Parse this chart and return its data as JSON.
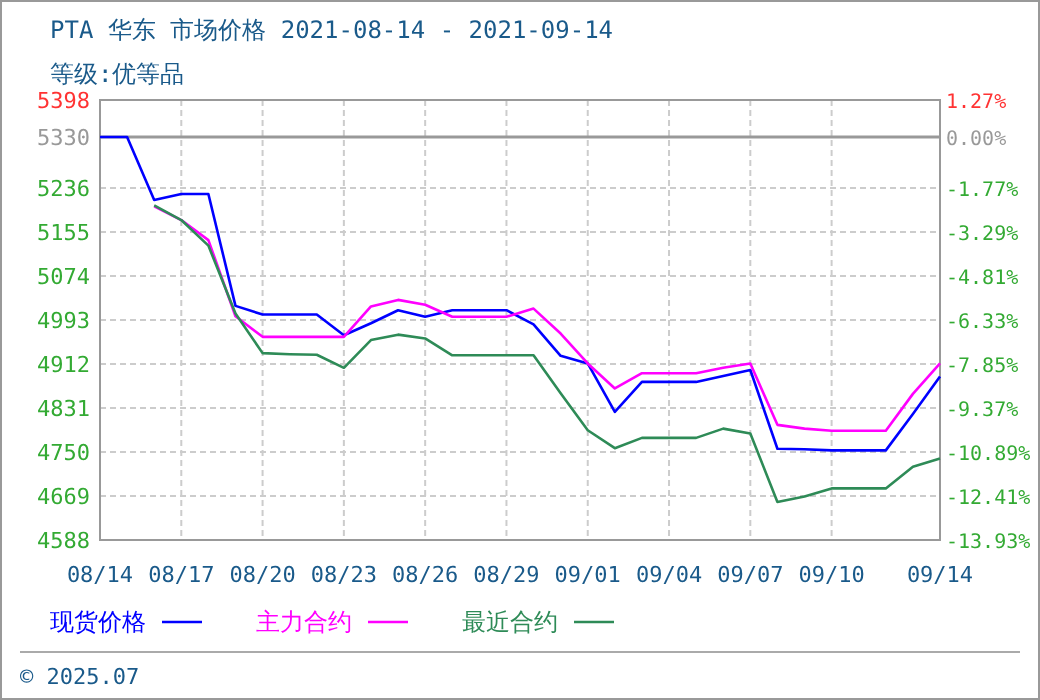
{
  "chart_data": {
    "type": "line",
    "title": "PTA 华东 市场价格 2021-08-14 - 2021-09-14",
    "subtitle": "等级:优等品",
    "x": [
      "2021-08-14",
      "2021-08-15",
      "2021-08-16",
      "2021-08-17",
      "2021-08-18",
      "2021-08-19",
      "2021-08-20",
      "2021-08-21",
      "2021-08-22",
      "2021-08-23",
      "2021-08-24",
      "2021-08-25",
      "2021-08-26",
      "2021-08-27",
      "2021-08-28",
      "2021-08-29",
      "2021-08-30",
      "2021-08-31",
      "2021-09-01",
      "2021-09-02",
      "2021-09-03",
      "2021-09-04",
      "2021-09-05",
      "2021-09-06",
      "2021-09-07",
      "2021-09-08",
      "2021-09-09",
      "2021-09-10",
      "2021-09-11",
      "2021-09-12",
      "2021-09-13",
      "2021-09-14"
    ],
    "series": [
      {
        "name": "现货价格",
        "color": "#0000ff",
        "values": [
          5330,
          5330,
          5214,
          5225,
          5225,
          5019,
          5003,
          5003,
          5003,
          4965,
          4987,
          5011,
          4999,
          5011,
          5011,
          5011,
          4985,
          4927,
          4913,
          4824,
          4879,
          4879,
          4879,
          4890,
          4901,
          4756,
          4755,
          4753,
          4753,
          4753,
          4820,
          4889
        ]
      },
      {
        "name": "主力合约",
        "color": "#ff00ff",
        "values": [
          null,
          null,
          5202,
          5177,
          5140,
          5000,
          4962,
          4962,
          4962,
          4962,
          5018,
          5030,
          5021,
          4999,
          4999,
          4999,
          5014,
          4968,
          4913,
          4867,
          4895,
          4895,
          4895,
          4905,
          4913,
          4800,
          4793,
          4789,
          4789,
          4789,
          4857,
          4913
        ]
      },
      {
        "name": "最近合约",
        "color": "#2e8b57",
        "values": [
          null,
          null,
          5204,
          5177,
          5130,
          5005,
          4932,
          4930,
          4929,
          4905,
          4956,
          4966,
          4959,
          4928,
          4928,
          4928,
          4928,
          4858,
          4790,
          4757,
          4776,
          4776,
          4776,
          4793,
          4784,
          4658,
          4668,
          4683,
          4683,
          4683,
          4723,
          4738
        ]
      }
    ],
    "xlim": [
      "2021-08-14",
      "2021-09-14"
    ],
    "xticks": [
      {
        "value": "2021-08-14",
        "label": "08/14"
      },
      {
        "value": "2021-08-17",
        "label": "08/17"
      },
      {
        "value": "2021-08-20",
        "label": "08/20"
      },
      {
        "value": "2021-08-23",
        "label": "08/23"
      },
      {
        "value": "2021-08-26",
        "label": "08/26"
      },
      {
        "value": "2021-08-29",
        "label": "08/29"
      },
      {
        "value": "2021-09-01",
        "label": "09/01"
      },
      {
        "value": "2021-09-04",
        "label": "09/04"
      },
      {
        "value": "2021-09-07",
        "label": "09/07"
      },
      {
        "value": "2021-09-10",
        "label": "09/10"
      },
      {
        "value": "2021-09-14",
        "label": "09/14"
      }
    ],
    "ylim": [
      4588,
      5398
    ],
    "yticks": [
      4588,
      4669,
      4750,
      4831,
      4912,
      4993,
      5074,
      5155,
      5236,
      5330,
      5398
    ],
    "y2lim": [
      -13.93,
      1.27
    ],
    "y2ticks": [
      {
        "value": -13.93,
        "label": "-13.93%"
      },
      {
        "value": -12.41,
        "label": "-12.41%"
      },
      {
        "value": -10.89,
        "label": "-10.89%"
      },
      {
        "value": -9.37,
        "label": "-9.37%"
      },
      {
        "value": -7.85,
        "label": "-7.85%"
      },
      {
        "value": -6.33,
        "label": "-6.33%"
      },
      {
        "value": -4.81,
        "label": "-4.81%"
      },
      {
        "value": -3.29,
        "label": "-3.29%"
      },
      {
        "value": -1.77,
        "label": "-1.77%"
      },
      {
        "value": 0,
        "label": "0.00%"
      },
      {
        "value": 1.27,
        "label": "1.27%"
      }
    ],
    "ref_lines": [
      {
        "axis": "y",
        "value": 5330,
        "color": "#999999"
      }
    ],
    "grid": true,
    "legend": "bottom",
    "annotations": [
      "© 2025.07"
    ]
  }
}
